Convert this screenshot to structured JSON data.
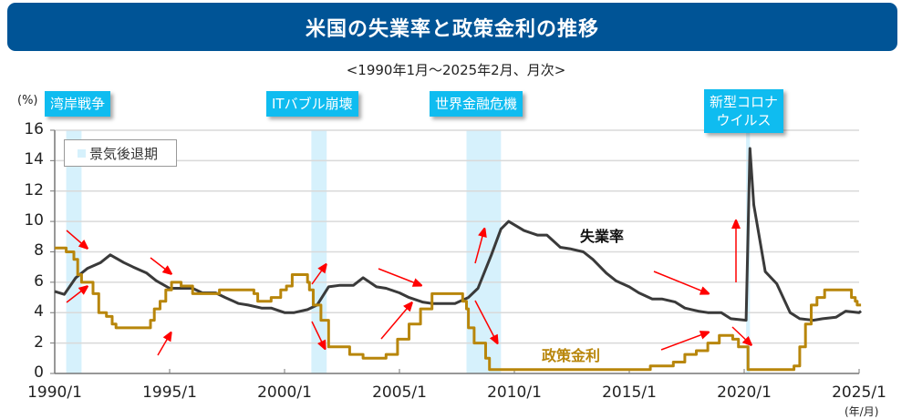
{
  "header": {
    "title": "米国の失業率と政策金利の推移",
    "subtitle": "<1990年1月～2025年2月、月次>"
  },
  "axes": {
    "y_unit": "(%)",
    "x_unit": "(年/月)",
    "y_ticks": [
      "16",
      "14",
      "12",
      "10",
      "8",
      "6",
      "4",
      "2",
      "0"
    ],
    "x_ticks": [
      "1990/1",
      "1995/1",
      "2000/1",
      "2005/1",
      "2010/1",
      "2015/1",
      "2020/1",
      "2025/1"
    ]
  },
  "legend": {
    "recession_label": "景気後退期"
  },
  "events": [
    {
      "label": "湾岸戦争"
    },
    {
      "label": "ITバブル崩壊"
    },
    {
      "label": "世界金融危機"
    },
    {
      "label": "新型コロナ",
      "label2": "ウイルス"
    }
  ],
  "series_labels": {
    "unemployment": "失業率",
    "policy_rate": "政策金利"
  },
  "colors": {
    "title_bg": "#005496",
    "event_bg": "#0fbcf0",
    "recession_band": "#d6f1fc",
    "unemployment": "#3a3a3a",
    "policy_rate": "#b8860b",
    "arrow": "#ff0000",
    "grid": "#d9d9d9"
  },
  "chart_data": {
    "type": "line",
    "title": "米国の失業率と政策金利の推移",
    "subtitle": "<1990年1月～2025年2月、月次>",
    "xlabel": "(年/月)",
    "ylabel": "(%)",
    "ylim": [
      0,
      16
    ],
    "xlim": [
      "1990/1",
      "2025/2"
    ],
    "grid": true,
    "legend_position": "top-left",
    "recessions": [
      {
        "name": "湾岸戦争",
        "start": "1990/7",
        "end": "1991/3"
      },
      {
        "name": "ITバブル崩壊",
        "start": "2001/3",
        "end": "2001/11"
      },
      {
        "name": "世界金融危機",
        "start": "2007/12",
        "end": "2009/6"
      },
      {
        "name": "新型コロナウイルス",
        "start": "2020/2",
        "end": "2020/4"
      }
    ],
    "series": [
      {
        "name": "失業率",
        "points": [
          [
            "1990/1",
            5.4
          ],
          [
            "1990/6",
            5.2
          ],
          [
            "1990/12",
            6.3
          ],
          [
            "1991/6",
            6.9
          ],
          [
            "1992/1",
            7.3
          ],
          [
            "1992/6",
            7.8
          ],
          [
            "1993/1",
            7.3
          ],
          [
            "1993/6",
            7.0
          ],
          [
            "1994/1",
            6.6
          ],
          [
            "1994/6",
            6.1
          ],
          [
            "1995/1",
            5.6
          ],
          [
            "1995/6",
            5.6
          ],
          [
            "1996/1",
            5.6
          ],
          [
            "1996/6",
            5.3
          ],
          [
            "1997/1",
            5.3
          ],
          [
            "1997/6",
            5.0
          ],
          [
            "1998/1",
            4.6
          ],
          [
            "1998/6",
            4.5
          ],
          [
            "1999/1",
            4.3
          ],
          [
            "1999/6",
            4.3
          ],
          [
            "2000/1",
            4.0
          ],
          [
            "2000/6",
            4.0
          ],
          [
            "2001/1",
            4.2
          ],
          [
            "2001/6",
            4.5
          ],
          [
            "2001/12",
            5.7
          ],
          [
            "2002/6",
            5.8
          ],
          [
            "2003/1",
            5.8
          ],
          [
            "2003/6",
            6.3
          ],
          [
            "2004/1",
            5.7
          ],
          [
            "2004/6",
            5.6
          ],
          [
            "2005/1",
            5.3
          ],
          [
            "2005/6",
            5.0
          ],
          [
            "2006/1",
            4.7
          ],
          [
            "2006/6",
            4.6
          ],
          [
            "2007/1",
            4.6
          ],
          [
            "2007/6",
            4.6
          ],
          [
            "2008/1",
            5.0
          ],
          [
            "2008/6",
            5.6
          ],
          [
            "2009/1",
            7.8
          ],
          [
            "2009/6",
            9.5
          ],
          [
            "2009/10",
            10.0
          ],
          [
            "2010/6",
            9.4
          ],
          [
            "2011/1",
            9.1
          ],
          [
            "2011/6",
            9.1
          ],
          [
            "2012/1",
            8.3
          ],
          [
            "2012/6",
            8.2
          ],
          [
            "2013/1",
            8.0
          ],
          [
            "2013/6",
            7.5
          ],
          [
            "2014/1",
            6.6
          ],
          [
            "2014/6",
            6.1
          ],
          [
            "2015/1",
            5.7
          ],
          [
            "2015/6",
            5.3
          ],
          [
            "2016/1",
            4.9
          ],
          [
            "2016/6",
            4.9
          ],
          [
            "2017/1",
            4.7
          ],
          [
            "2017/6",
            4.3
          ],
          [
            "2018/1",
            4.1
          ],
          [
            "2018/6",
            4.0
          ],
          [
            "2019/1",
            4.0
          ],
          [
            "2019/6",
            3.6
          ],
          [
            "2020/2",
            3.5
          ],
          [
            "2020/4",
            14.8
          ],
          [
            "2020/6",
            11.1
          ],
          [
            "2020/12",
            6.7
          ],
          [
            "2021/6",
            5.9
          ],
          [
            "2022/1",
            4.0
          ],
          [
            "2022/6",
            3.6
          ],
          [
            "2023/1",
            3.5
          ],
          [
            "2023/6",
            3.6
          ],
          [
            "2024/1",
            3.7
          ],
          [
            "2024/6",
            4.1
          ],
          [
            "2025/1",
            4.0
          ],
          [
            "2025/2",
            4.1
          ]
        ]
      },
      {
        "name": "政策金利",
        "points": [
          [
            "1990/1",
            8.25
          ],
          [
            "1990/7",
            8.0
          ],
          [
            "1990/11",
            7.5
          ],
          [
            "1991/1",
            6.5
          ],
          [
            "1991/3",
            6.0
          ],
          [
            "1991/9",
            5.25
          ],
          [
            "1991/12",
            4.0
          ],
          [
            "1992/4",
            3.75
          ],
          [
            "1992/7",
            3.25
          ],
          [
            "1992/9",
            3.0
          ],
          [
            "1994/1",
            3.0
          ],
          [
            "1994/3",
            3.5
          ],
          [
            "1994/5",
            4.25
          ],
          [
            "1994/8",
            4.75
          ],
          [
            "1994/11",
            5.5
          ],
          [
            "1995/2",
            6.0
          ],
          [
            "1995/7",
            5.75
          ],
          [
            "1996/1",
            5.25
          ],
          [
            "1997/3",
            5.5
          ],
          [
            "1998/9",
            5.25
          ],
          [
            "1998/11",
            4.75
          ],
          [
            "1999/6",
            5.0
          ],
          [
            "1999/11",
            5.5
          ],
          [
            "2000/2",
            5.75
          ],
          [
            "2000/5",
            6.5
          ],
          [
            "2001/1",
            6.0
          ],
          [
            "2001/2",
            5.5
          ],
          [
            "2001/4",
            4.5
          ],
          [
            "2001/8",
            3.5
          ],
          [
            "2001/12",
            1.75
          ],
          [
            "2002/11",
            1.25
          ],
          [
            "2003/6",
            1.0
          ],
          [
            "2004/6",
            1.25
          ],
          [
            "2004/12",
            2.25
          ],
          [
            "2005/6",
            3.25
          ],
          [
            "2005/12",
            4.25
          ],
          [
            "2006/6",
            5.25
          ],
          [
            "2007/8",
            5.25
          ],
          [
            "2007/10",
            4.75
          ],
          [
            "2007/12",
            4.25
          ],
          [
            "2008/1",
            3.0
          ],
          [
            "2008/4",
            2.0
          ],
          [
            "2008/10",
            1.0
          ],
          [
            "2008/12",
            0.25
          ],
          [
            "2015/12",
            0.5
          ],
          [
            "2016/12",
            0.75
          ],
          [
            "2017/6",
            1.25
          ],
          [
            "2017/12",
            1.5
          ],
          [
            "2018/6",
            2.0
          ],
          [
            "2018/12",
            2.5
          ],
          [
            "2019/7",
            2.25
          ],
          [
            "2019/10",
            1.75
          ],
          [
            "2020/3",
            0.25
          ],
          [
            "2022/3",
            0.5
          ],
          [
            "2022/6",
            1.75
          ],
          [
            "2022/9",
            3.25
          ],
          [
            "2022/12",
            4.5
          ],
          [
            "2023/3",
            5.0
          ],
          [
            "2023/7",
            5.5
          ],
          [
            "2024/9",
            5.0
          ],
          [
            "2024/11",
            4.75
          ],
          [
            "2024/12",
            4.5
          ],
          [
            "2025/2",
            4.5
          ]
        ]
      }
    ]
  }
}
